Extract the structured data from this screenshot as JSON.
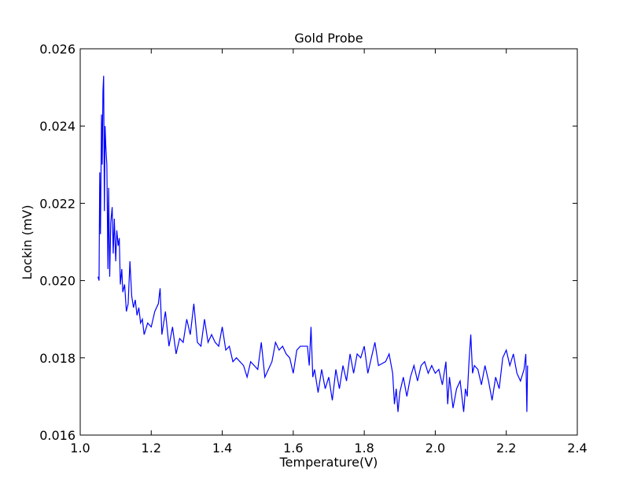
{
  "chart_data": {
    "type": "line",
    "title": "Gold Probe",
    "x_label": "Temperature(V)",
    "y_label": "Lockin (mV)",
    "x": [
      1.05,
      1.053,
      1.055,
      1.057,
      1.06,
      1.062,
      1.064,
      1.066,
      1.068,
      1.07,
      1.072,
      1.075,
      1.078,
      1.08,
      1.083,
      1.086,
      1.09,
      1.093,
      1.096,
      1.1,
      1.103,
      1.107,
      1.11,
      1.113,
      1.117,
      1.12,
      1.125,
      1.13,
      1.135,
      1.14,
      1.145,
      1.15,
      1.155,
      1.16,
      1.165,
      1.17,
      1.175,
      1.18,
      1.19,
      1.2,
      1.21,
      1.22,
      1.225,
      1.23,
      1.24,
      1.25,
      1.26,
      1.27,
      1.28,
      1.29,
      1.3,
      1.31,
      1.32,
      1.33,
      1.34,
      1.35,
      1.36,
      1.37,
      1.38,
      1.39,
      1.4,
      1.41,
      1.42,
      1.43,
      1.44,
      1.46,
      1.47,
      1.48,
      1.5,
      1.51,
      1.52,
      1.54,
      1.55,
      1.56,
      1.57,
      1.58,
      1.59,
      1.6,
      1.61,
      1.62,
      1.64,
      1.645,
      1.65,
      1.655,
      1.66,
      1.67,
      1.68,
      1.69,
      1.7,
      1.71,
      1.72,
      1.73,
      1.74,
      1.75,
      1.76,
      1.77,
      1.78,
      1.79,
      1.8,
      1.81,
      1.82,
      1.83,
      1.84,
      1.86,
      1.87,
      1.88,
      1.885,
      1.89,
      1.895,
      1.9,
      1.91,
      1.92,
      1.93,
      1.94,
      1.95,
      1.96,
      1.97,
      1.98,
      1.99,
      2.0,
      2.01,
      2.02,
      2.03,
      2.035,
      2.04,
      2.05,
      2.06,
      2.07,
      2.08,
      2.085,
      2.09,
      2.095,
      2.1,
      2.105,
      2.11,
      2.12,
      2.13,
      2.14,
      2.15,
      2.16,
      2.17,
      2.18,
      2.19,
      2.2,
      2.21,
      2.22,
      2.23,
      2.24,
      2.25,
      2.255,
      2.258,
      2.26
    ],
    "series": [
      {
        "color": "#0000ff",
        "values": [
          0.0201,
          0.02,
          0.0228,
          0.0212,
          0.0243,
          0.023,
          0.0249,
          0.0253,
          0.0218,
          0.024,
          0.0235,
          0.023,
          0.0203,
          0.0224,
          0.0201,
          0.0215,
          0.0219,
          0.0207,
          0.0216,
          0.0205,
          0.0213,
          0.0209,
          0.0211,
          0.0199,
          0.0203,
          0.0197,
          0.0199,
          0.0192,
          0.0194,
          0.0205,
          0.0196,
          0.0193,
          0.0195,
          0.0191,
          0.0193,
          0.0189,
          0.019,
          0.0186,
          0.0189,
          0.0188,
          0.0192,
          0.0194,
          0.0198,
          0.0186,
          0.0192,
          0.0183,
          0.0188,
          0.0181,
          0.0185,
          0.0184,
          0.019,
          0.0186,
          0.0194,
          0.0184,
          0.0183,
          0.019,
          0.0184,
          0.0186,
          0.0184,
          0.0183,
          0.0188,
          0.0182,
          0.0183,
          0.0179,
          0.018,
          0.0178,
          0.0175,
          0.0179,
          0.0177,
          0.0184,
          0.0175,
          0.0179,
          0.0184,
          0.0182,
          0.0183,
          0.0181,
          0.018,
          0.0176,
          0.0182,
          0.0183,
          0.0183,
          0.0178,
          0.0188,
          0.0175,
          0.0177,
          0.0171,
          0.0177,
          0.0172,
          0.0175,
          0.0169,
          0.0177,
          0.0172,
          0.0178,
          0.0174,
          0.0181,
          0.0176,
          0.0181,
          0.018,
          0.0183,
          0.0176,
          0.018,
          0.0184,
          0.0178,
          0.0179,
          0.0181,
          0.0176,
          0.0168,
          0.0172,
          0.0166,
          0.0171,
          0.0175,
          0.017,
          0.0175,
          0.0178,
          0.0174,
          0.0178,
          0.0179,
          0.0176,
          0.0178,
          0.0176,
          0.0177,
          0.0173,
          0.0179,
          0.0168,
          0.0175,
          0.0167,
          0.0172,
          0.0174,
          0.0166,
          0.0172,
          0.017,
          0.0179,
          0.0186,
          0.0176,
          0.0178,
          0.0177,
          0.0173,
          0.0178,
          0.0174,
          0.0169,
          0.0175,
          0.0172,
          0.018,
          0.0182,
          0.0178,
          0.0181,
          0.0176,
          0.0174,
          0.0177,
          0.0181,
          0.0166,
          0.0178
        ]
      }
    ],
    "xlim": [
      1.0,
      2.4
    ],
    "ylim": [
      0.016,
      0.026
    ],
    "xticks": [
      {
        "value": 1,
        "label": "1.0"
      },
      1.2,
      1.4,
      1.6,
      1.8,
      {
        "value": 2,
        "label": "2.0"
      },
      2.2,
      2.4
    ],
    "yticks": [
      0.016,
      0.018,
      {
        "value": 0.02,
        "label": "0.020"
      },
      0.022,
      0.024,
      0.026
    ]
  }
}
